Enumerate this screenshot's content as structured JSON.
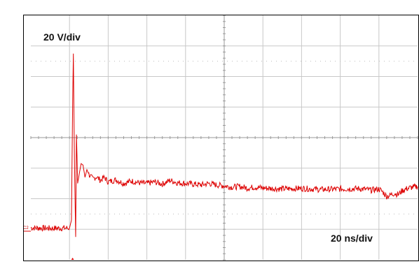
{
  "chart_data": {
    "type": "line",
    "title": "",
    "xlabel": "",
    "ylabel": "",
    "annotations": {
      "vertical_scale": "20 V/div",
      "horizontal_scale": "20 ns/div",
      "channel_marker": "C2"
    },
    "grid": true,
    "x_divisions": 10,
    "y_divisions": 8,
    "xlim": [
      0,
      10
    ],
    "ylim": [
      -4,
      4
    ],
    "series": [
      {
        "color": "#dd0000",
        "x": [
          0.0,
          0.5,
          1.0,
          1.05,
          1.08,
          1.1,
          1.13,
          1.16,
          1.18,
          1.21,
          1.25,
          1.3,
          1.35,
          1.4,
          1.45,
          1.5,
          1.6,
          1.7,
          1.8,
          1.9,
          2.0,
          2.2,
          2.4,
          2.6,
          2.8,
          3.0,
          3.2,
          3.4,
          3.6,
          3.8,
          4.0,
          4.2,
          4.4,
          4.6,
          4.8,
          5.0,
          5.2,
          5.4,
          5.6,
          5.8,
          6.0,
          6.5,
          7.0,
          7.5,
          8.0,
          8.5,
          8.8,
          9.0,
          9.1,
          9.2,
          9.3,
          9.4,
          9.5,
          9.6,
          9.7,
          9.8,
          10.0
        ],
        "y": [
          -2.95,
          -2.97,
          -2.96,
          -2.7,
          1.0,
          2.75,
          -1.0,
          -3.25,
          0.1,
          -1.5,
          -1.2,
          -0.85,
          -0.9,
          -1.3,
          -1.05,
          -1.2,
          -1.35,
          -1.28,
          -1.4,
          -1.3,
          -1.45,
          -1.38,
          -1.5,
          -1.42,
          -1.48,
          -1.5,
          -1.45,
          -1.52,
          -1.4,
          -1.48,
          -1.5,
          -1.52,
          -1.55,
          -1.5,
          -1.55,
          -1.58,
          -1.62,
          -1.6,
          -1.65,
          -1.62,
          -1.65,
          -1.68,
          -1.66,
          -1.7,
          -1.68,
          -1.67,
          -1.72,
          -1.68,
          -1.78,
          -1.92,
          -1.88,
          -1.82,
          -1.86,
          -1.74,
          -1.68,
          -1.64,
          -1.6
        ]
      }
    ]
  }
}
